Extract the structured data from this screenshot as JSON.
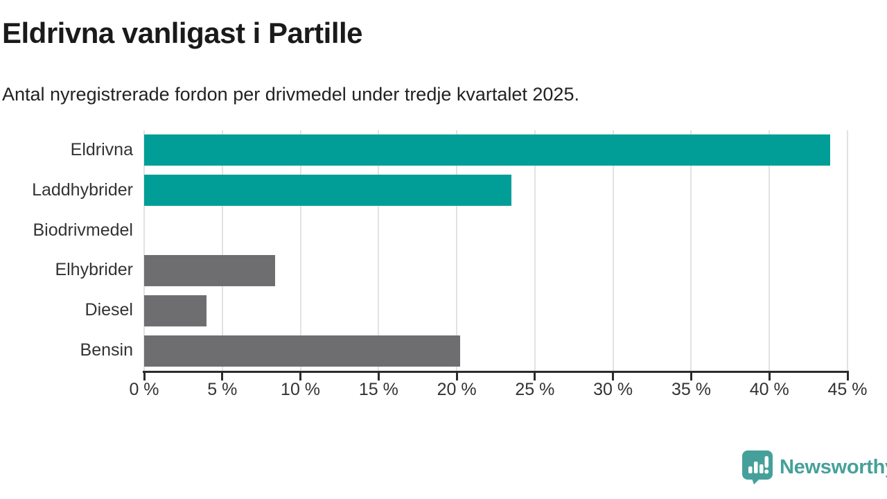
{
  "header": {
    "title": "Eldrivna vanligast i Partille",
    "subtitle": "Antal nyregistrerade fordon per drivmedel under tredje kvartalet 2025."
  },
  "chart_data": {
    "type": "bar",
    "orientation": "horizontal",
    "title": "Eldrivna vanligast i Partille",
    "subtitle": "Antal nyregistrerade fordon per drivmedel under tredje kvartalet 2025.",
    "categories": [
      "Eldrivna",
      "Laddhybrider",
      "Biodrivmedel",
      "Elhybrider",
      "Diesel",
      "Bensin"
    ],
    "values": [
      43.9,
      23.5,
      0,
      8.4,
      4.0,
      20.2
    ],
    "value_unit": "%",
    "bar_colors": [
      "#009e96",
      "#009e96",
      "#6e6e70",
      "#6e6e70",
      "#6e6e70",
      "#6e6e70"
    ],
    "xlim": [
      0,
      45
    ],
    "x_ticks": [
      0,
      5,
      10,
      15,
      20,
      25,
      30,
      35,
      40,
      45
    ],
    "x_tick_labels": [
      "0 %",
      "5 %",
      "10 %",
      "15 %",
      "20 %",
      "25 %",
      "30 %",
      "35 %",
      "40 %",
      "45 %"
    ],
    "grid": "vertical",
    "legend": "none"
  },
  "branding": {
    "logo_text": "Newsworthy",
    "logo_color": "#46a09a",
    "logo_icon": "bar-chart-speech-bubble-icon"
  },
  "colors": {
    "teal_bar": "#009e96",
    "gray_bar": "#6e6e70",
    "axis_line": "#2b2b2b",
    "gridline": "#e2e2e2",
    "title_text": "#1a1a1a",
    "axis_text": "#333333"
  }
}
